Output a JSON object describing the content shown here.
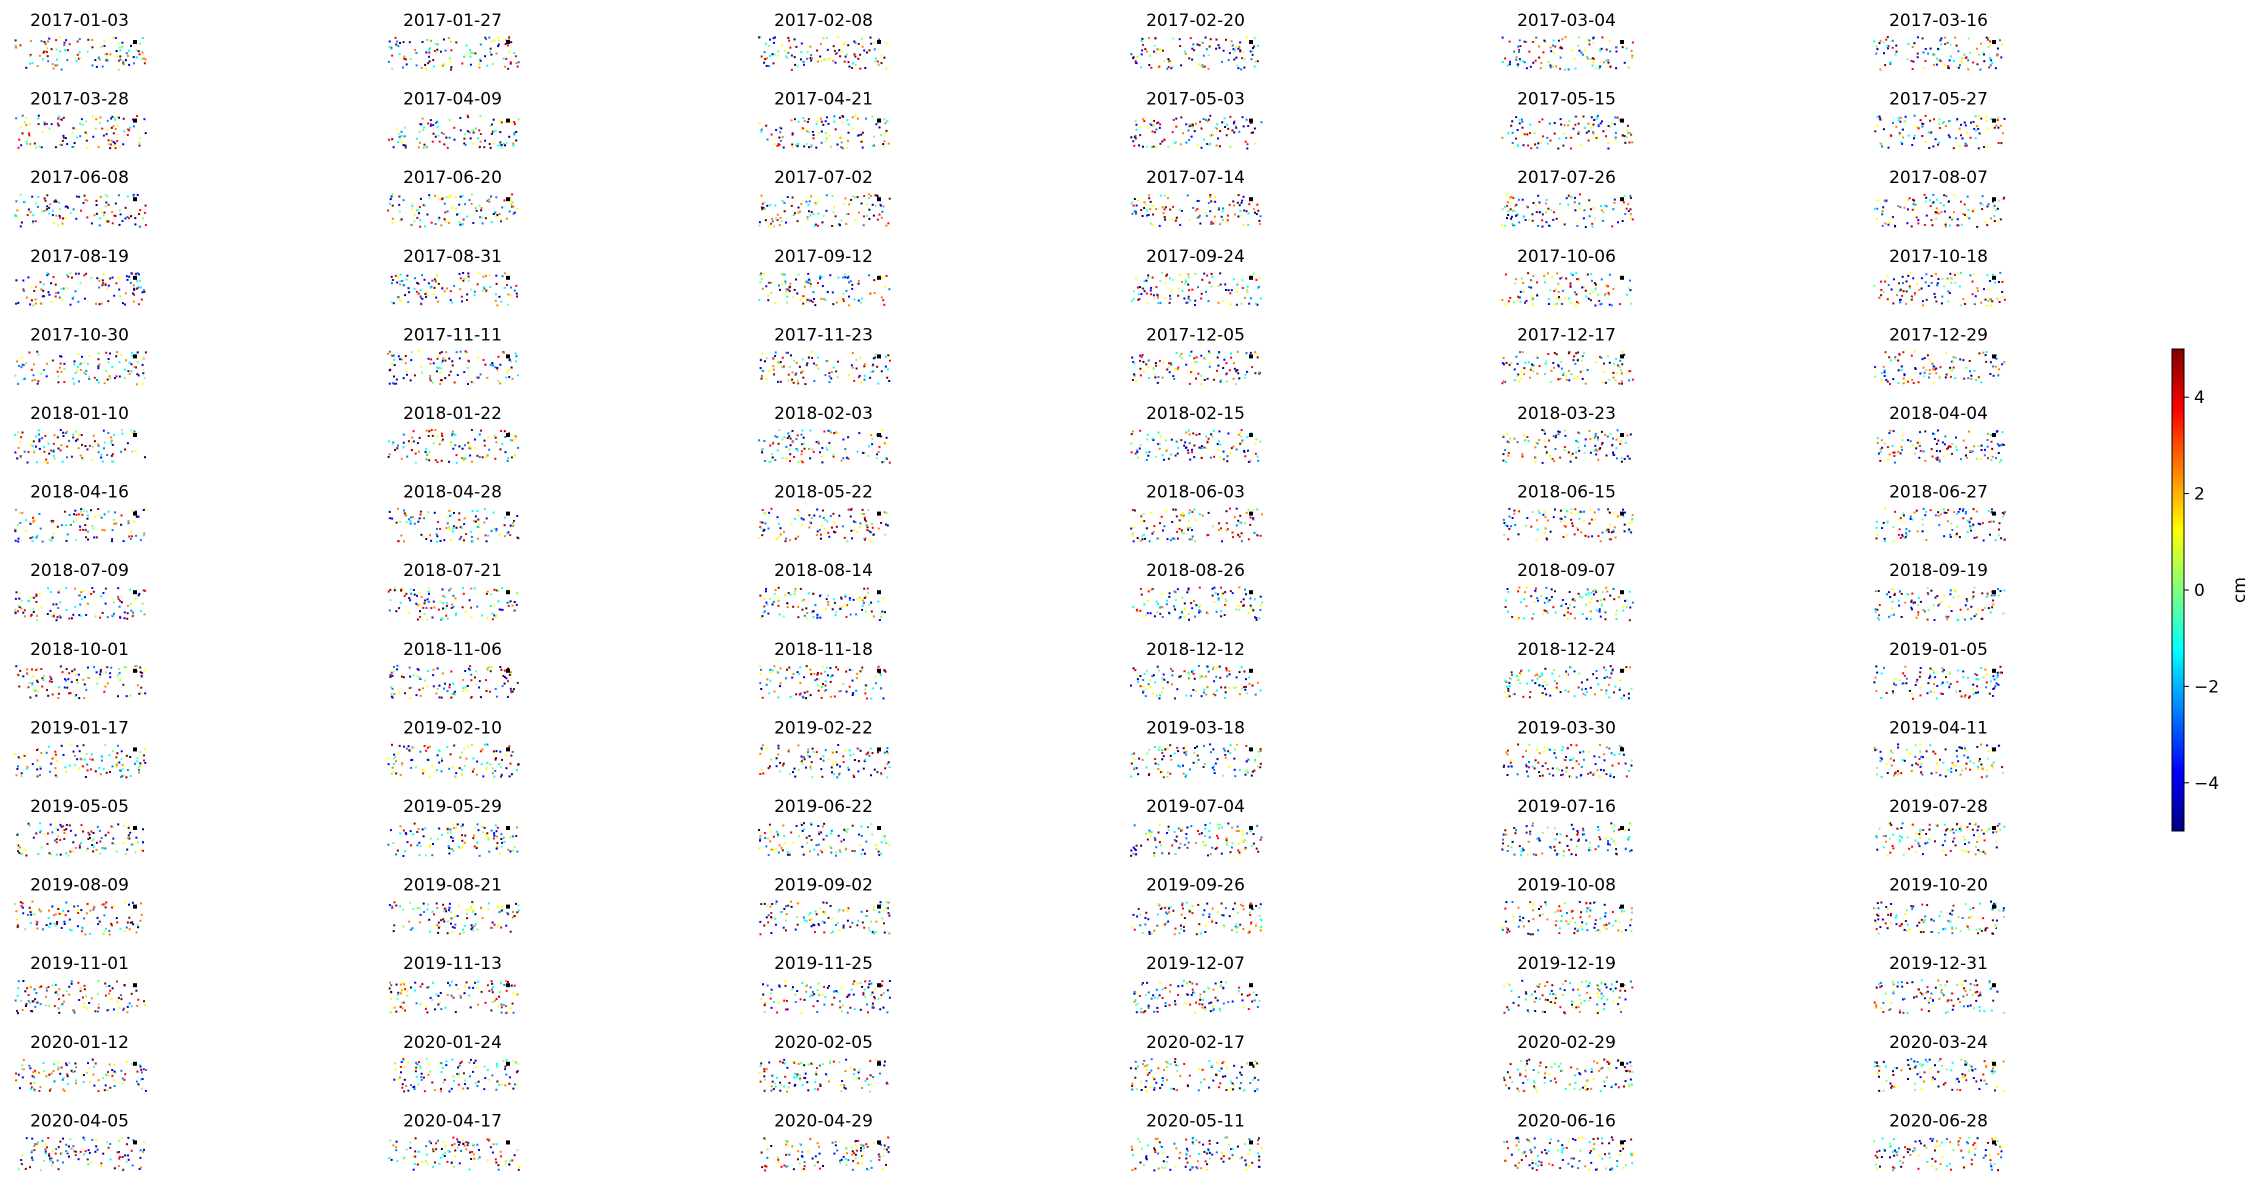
{
  "chart_data": {
    "type": "small-multiples",
    "panel_titles": [
      "2017-01-03",
      "2017-01-27",
      "2017-02-08",
      "2017-02-20",
      "2017-03-04",
      "2017-03-16",
      "2017-03-28",
      "2017-04-09",
      "2017-04-21",
      "2017-05-03",
      "2017-05-15",
      "2017-05-27",
      "2017-06-08",
      "2017-06-20",
      "2017-07-02",
      "2017-07-14",
      "2017-07-26",
      "2017-08-07",
      "2017-08-19",
      "2017-08-31",
      "2017-09-12",
      "2017-09-24",
      "2017-10-06",
      "2017-10-18",
      "2017-10-30",
      "2017-11-11",
      "2017-11-23",
      "2017-12-05",
      "2017-12-17",
      "2017-12-29",
      "2018-01-10",
      "2018-01-22",
      "2018-02-03",
      "2018-02-15",
      "2018-03-23",
      "2018-04-04",
      "2018-04-16",
      "2018-04-28",
      "2018-05-22",
      "2018-06-03",
      "2018-06-15",
      "2018-06-27",
      "2018-07-09",
      "2018-07-21",
      "2018-08-14",
      "2018-08-26",
      "2018-09-07",
      "2018-09-19",
      "2018-10-01",
      "2018-11-06",
      "2018-11-18",
      "2018-12-12",
      "2018-12-24",
      "2019-01-05",
      "2019-01-17",
      "2019-02-10",
      "2019-02-22",
      "2019-03-18",
      "2019-03-30",
      "2019-04-11",
      "2019-05-05",
      "2019-05-29",
      "2019-06-22",
      "2019-07-04",
      "2019-07-16",
      "2019-07-28",
      "2019-08-09",
      "2019-08-21",
      "2019-09-02",
      "2019-09-26",
      "2019-10-08",
      "2019-10-20",
      "2019-11-01",
      "2019-11-13",
      "2019-11-25",
      "2019-12-07",
      "2019-12-19",
      "2019-12-31",
      "2020-01-12",
      "2020-01-24",
      "2020-02-05",
      "2020-02-17",
      "2020-02-29",
      "2020-03-24",
      "2020-04-05",
      "2020-04-17",
      "2020-04-29",
      "2020-05-11",
      "2020-06-16",
      "2020-06-28"
    ],
    "colorbar": {
      "label": "cm",
      "ylim": [
        -5,
        5
      ],
      "yticks": [
        {
          "value": -4,
          "label": "−4"
        },
        {
          "value": -2,
          "label": "−2"
        },
        0,
        2,
        4
      ],
      "colors": [
        "#00007f",
        "#0000ff",
        "#007fff",
        "#00ffff",
        "#7fff7f",
        "#ffff00",
        "#ff7f00",
        "#ff0000",
        "#7f0000"
      ]
    }
  }
}
